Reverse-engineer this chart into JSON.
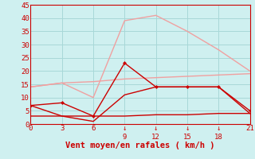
{
  "x": [
    0,
    3,
    6,
    9,
    12,
    15,
    18,
    21
  ],
  "line1_y": [
    14,
    15.5,
    10,
    39,
    41,
    35,
    28,
    20
  ],
  "line2_y": [
    14,
    15.5,
    16,
    17,
    17.5,
    18,
    18.5,
    19
  ],
  "line3_y": [
    7,
    8,
    3,
    23,
    14,
    14,
    14,
    5
  ],
  "line4_y": [
    7,
    3,
    1,
    11,
    14,
    14,
    14,
    4
  ],
  "line5_y": [
    3,
    3,
    3,
    3,
    3.5,
    3.5,
    4,
    4
  ],
  "line1_color": "#f0a0a0",
  "line2_color": "#f0a0a0",
  "line3_color": "#cc0000",
  "line4_color": "#cc0000",
  "line5_color": "#cc0000",
  "bg_color": "#cff0f0",
  "grid_color": "#a8d8d8",
  "xlabel": "Vent moyen/en rafales ( km/h )",
  "xlabel_color": "#cc0000",
  "xlim": [
    0,
    21
  ],
  "ylim": [
    0,
    45
  ],
  "yticks": [
    0,
    5,
    10,
    15,
    20,
    25,
    30,
    35,
    40,
    45
  ],
  "xticks": [
    0,
    3,
    6,
    9,
    12,
    15,
    18,
    21
  ],
  "arrow_xticks": [
    9,
    12,
    15,
    18
  ],
  "tick_color": "#cc0000",
  "tick_fontsize": 6.5,
  "xlabel_fontsize": 7.5
}
